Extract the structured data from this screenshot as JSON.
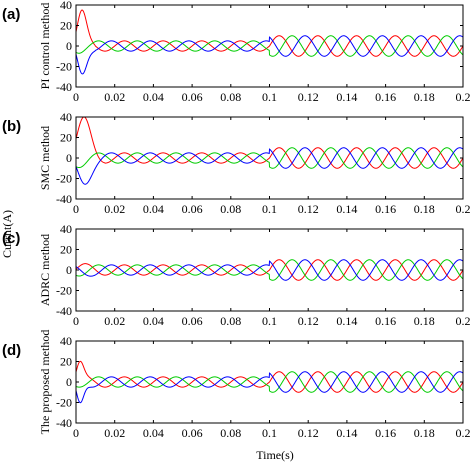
{
  "colors": {
    "phase_a": "#ff0000",
    "phase_b": "#00cc00",
    "phase_c": "#0000ff",
    "axis": "#000000",
    "background": "#ffffff"
  },
  "figure": {
    "shared_ylabel": "Currnt(A)",
    "shared_xlabel": "Time(s)"
  },
  "chart_data": [
    {
      "type": "line",
      "panel_label": "(a)",
      "ylabel": "PI control method",
      "xlim": [
        0,
        0.2
      ],
      "ylim": [
        -40,
        40
      ],
      "xticks": [
        "0",
        "0.02",
        "0.04",
        "0.06",
        "0.08",
        "0.1",
        "0.12",
        "0.14",
        "0.16",
        "0.18",
        "0.2"
      ],
      "yticks": [
        "40",
        "20",
        "0",
        "-20",
        "-40"
      ],
      "frequency_hz": 50,
      "amplitude_before": 5,
      "amplitude_after": 10,
      "step_time": 0.1,
      "transient": {
        "red": {
          "x": 0.003,
          "y": 35
        },
        "blue": {
          "x": 0.003,
          "y": -27
        },
        "decay_by": 0.01
      },
      "series": [
        {
          "color": "phase_a",
          "phase_deg": 0
        },
        {
          "color": "phase_b",
          "phase_deg": -120
        },
        {
          "color": "phase_c",
          "phase_deg": 120
        }
      ]
    },
    {
      "type": "line",
      "panel_label": "(b)",
      "ylabel": "SMC method",
      "xlim": [
        0,
        0.2
      ],
      "ylim": [
        -40,
        40
      ],
      "xticks": [
        "0",
        "0.02",
        "0.04",
        "0.06",
        "0.08",
        "0.1",
        "0.12",
        "0.14",
        "0.16",
        "0.18",
        "0.2"
      ],
      "yticks": [
        "40",
        "20",
        "0",
        "-20",
        "-40"
      ],
      "frequency_hz": 50,
      "amplitude_before": 5,
      "amplitude_after": 10,
      "step_time": 0.1,
      "transient": {
        "red": {
          "x": 0.004,
          "y": 40
        },
        "blue": {
          "x": 0.004,
          "y": -25
        },
        "decay_by": 0.015
      },
      "series": [
        {
          "color": "phase_a",
          "phase_deg": 0
        },
        {
          "color": "phase_b",
          "phase_deg": -120
        },
        {
          "color": "phase_c",
          "phase_deg": 120
        }
      ]
    },
    {
      "type": "line",
      "panel_label": "(c)",
      "ylabel": "ADRC method",
      "xlim": [
        0,
        0.2
      ],
      "ylim": [
        -40,
        40
      ],
      "xticks": [
        "0",
        "0.02",
        "0.04",
        "0.06",
        "0.08",
        "0.1",
        "0.12",
        "0.14",
        "0.16",
        "0.18",
        "0.2"
      ],
      "yticks": [
        "40",
        "20",
        "0",
        "-20",
        "-40"
      ],
      "frequency_hz": 50,
      "amplitude_before": 5,
      "amplitude_after": 10,
      "step_time": 0.1,
      "transient": {
        "red": {
          "x": 0.004,
          "y": 6
        },
        "blue": {
          "x": 0.004,
          "y": -3
        },
        "decay_by": 0.015
      },
      "series": [
        {
          "color": "phase_a",
          "phase_deg": 0
        },
        {
          "color": "phase_b",
          "phase_deg": -120
        },
        {
          "color": "phase_c",
          "phase_deg": 120
        }
      ]
    },
    {
      "type": "line",
      "panel_label": "(d)",
      "ylabel": "The proposed method",
      "xlim": [
        0,
        0.2
      ],
      "ylim": [
        -40,
        40
      ],
      "xticks": [
        "0",
        "0.02",
        "0.04",
        "0.06",
        "0.08",
        "0.1",
        "0.12",
        "0.14",
        "0.16",
        "0.18",
        "0.2"
      ],
      "yticks": [
        "40",
        "20",
        "0",
        "-20",
        "-40"
      ],
      "frequency_hz": 50,
      "amplitude_before": 5,
      "amplitude_after": 10,
      "step_time": 0.1,
      "transient": {
        "red": {
          "x": 0.002,
          "y": 20
        },
        "blue": {
          "x": 0.002,
          "y": -20
        },
        "decay_by": 0.008
      },
      "series": [
        {
          "color": "phase_a",
          "phase_deg": 0
        },
        {
          "color": "phase_b",
          "phase_deg": -120
        },
        {
          "color": "phase_c",
          "phase_deg": 120
        }
      ]
    }
  ]
}
